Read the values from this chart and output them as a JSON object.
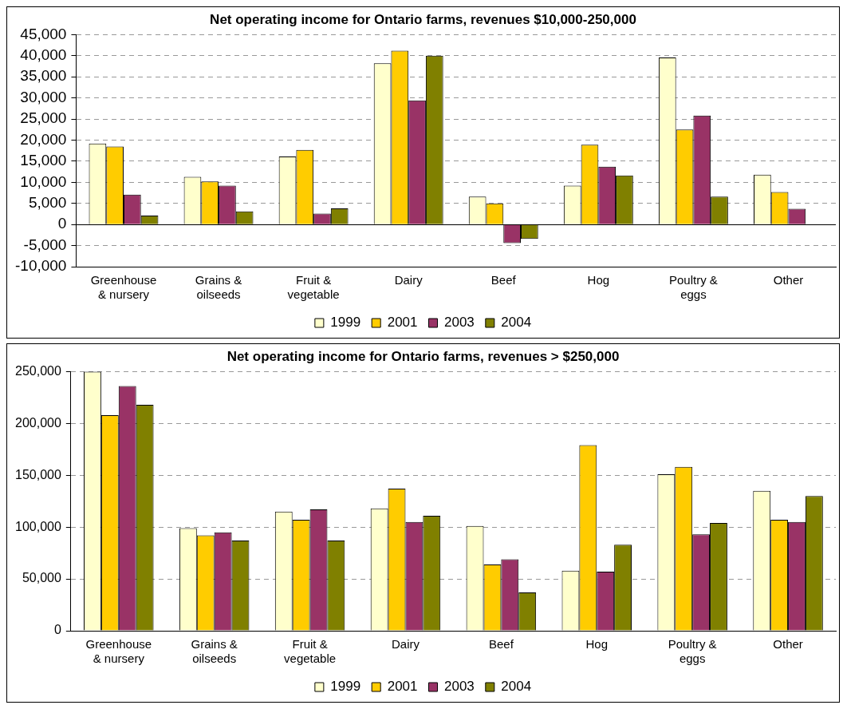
{
  "chart_data": [
    {
      "type": "bar",
      "title": "Net operating income for Ontario farms, revenues $10,000-250,000",
      "categories": [
        "Greenhouse & nursery",
        "Grains & oilseeds",
        "Fruit & vegetable",
        "Dairy",
        "Beef",
        "Hog",
        "Poultry & eggs",
        "Other"
      ],
      "series": [
        {
          "name": "1999",
          "color": "#ffffcc",
          "values": [
            19200,
            11300,
            16100,
            38200,
            6600,
            9200,
            39600,
            11800
          ]
        },
        {
          "name": "2001",
          "color": "#ffcc00",
          "values": [
            18500,
            10200,
            17700,
            41200,
            5000,
            18900,
            22500,
            7700
          ]
        },
        {
          "name": "2003",
          "color": "#993366",
          "values": [
            7100,
            9200,
            2600,
            29400,
            -4400,
            13700,
            25800,
            3700
          ]
        },
        {
          "name": "2004",
          "color": "#808000",
          "values": [
            2100,
            3100,
            3800,
            40000,
            -3400,
            11600,
            6600,
            null
          ]
        }
      ],
      "ylim": [
        -10000,
        45000
      ],
      "yticks": [
        {
          "value": -10000,
          "label": "-10,000"
        },
        {
          "value": -5000,
          "label": "-5,000"
        },
        0,
        {
          "value": 5000,
          "label": "5,000"
        },
        {
          "value": 10000,
          "label": "10,000"
        },
        {
          "value": 15000,
          "label": "15,000"
        },
        {
          "value": 20000,
          "label": "20,000"
        },
        {
          "value": 25000,
          "label": "25,000"
        },
        {
          "value": 30000,
          "label": "30,000"
        },
        {
          "value": 35000,
          "label": "35,000"
        },
        {
          "value": 40000,
          "label": "40,000"
        },
        {
          "value": 45000,
          "label": "45,000"
        }
      ],
      "grid": "y",
      "legend": "bottom"
    },
    {
      "type": "bar",
      "title": "Net operating income for Ontario farms, revenues > $250,000",
      "categories": [
        "Greenhouse & nursery",
        "Grains & oilseeds",
        "Fruit & vegetable",
        "Dairy",
        "Beef",
        "Hog",
        "Poultry & eggs",
        "Other"
      ],
      "series": [
        {
          "name": "1999",
          "color": "#ffffcc",
          "values": [
            250000,
            99000,
            115000,
            118000,
            101000,
            58000,
            151000,
            135000
          ]
        },
        {
          "name": "2001",
          "color": "#ffcc00",
          "values": [
            208000,
            92000,
            107000,
            137000,
            64000,
            179000,
            158000,
            107000
          ]
        },
        {
          "name": "2003",
          "color": "#993366",
          "values": [
            236000,
            95000,
            117000,
            105000,
            69000,
            57000,
            93000,
            105000
          ]
        },
        {
          "name": "2004",
          "color": "#808000",
          "values": [
            218000,
            87000,
            87000,
            111000,
            37000,
            83000,
            104000,
            130000
          ]
        }
      ],
      "ylim": [
        0,
        250000
      ],
      "yticks": [
        0,
        {
          "value": 50000,
          "label": "50,000"
        },
        {
          "value": 100000,
          "label": "100,000"
        },
        {
          "value": 150000,
          "label": "150,000"
        },
        {
          "value": 200000,
          "label": "200,000"
        },
        {
          "value": 250000,
          "label": "250,000"
        }
      ],
      "grid": "y",
      "legend": "bottom"
    }
  ]
}
